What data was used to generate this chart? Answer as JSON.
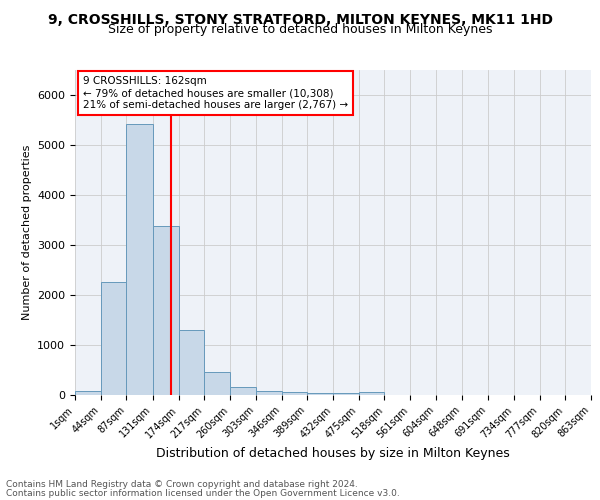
{
  "title1": "9, CROSSHILLS, STONY STRATFORD, MILTON KEYNES, MK11 1HD",
  "title2": "Size of property relative to detached houses in Milton Keynes",
  "xlabel": "Distribution of detached houses by size in Milton Keynes",
  "ylabel": "Number of detached properties",
  "footer1": "Contains HM Land Registry data © Crown copyright and database right 2024.",
  "footer2": "Contains public sector information licensed under the Open Government Licence v3.0.",
  "annotation_line1": "9 CROSSHILLS: 162sqm",
  "annotation_line2": "← 79% of detached houses are smaller (10,308)",
  "annotation_line3": "21% of semi-detached houses are larger (2,767) →",
  "bar_edges": [
    1,
    44,
    87,
    131,
    174,
    217,
    260,
    303,
    346,
    389,
    432,
    475,
    518,
    561,
    604,
    648,
    691,
    734,
    777,
    820,
    863
  ],
  "bar_heights": [
    75,
    2270,
    5430,
    3380,
    1310,
    470,
    160,
    80,
    70,
    50,
    40,
    70,
    0,
    0,
    0,
    0,
    0,
    0,
    0,
    0
  ],
  "bar_color": "#c8d8e8",
  "bar_edgecolor": "#6699bb",
  "vline_x": 162,
  "vline_color": "red",
  "ylim": [
    0,
    6500
  ],
  "xlim": [
    1,
    863
  ],
  "tick_labels": [
    "1sqm",
    "44sqm",
    "87sqm",
    "131sqm",
    "174sqm",
    "217sqm",
    "260sqm",
    "303sqm",
    "346sqm",
    "389sqm",
    "432sqm",
    "475sqm",
    "518sqm",
    "561sqm",
    "604sqm",
    "648sqm",
    "691sqm",
    "734sqm",
    "777sqm",
    "820sqm",
    "863sqm"
  ],
  "bg_color": "#eef2f8",
  "grid_color": "#cccccc",
  "title1_fontsize": 10,
  "title2_fontsize": 9,
  "footer_fontsize": 6.5,
  "ylabel_fontsize": 8,
  "xlabel_fontsize": 9,
  "tick_fontsize": 7,
  "annot_fontsize": 7.5
}
